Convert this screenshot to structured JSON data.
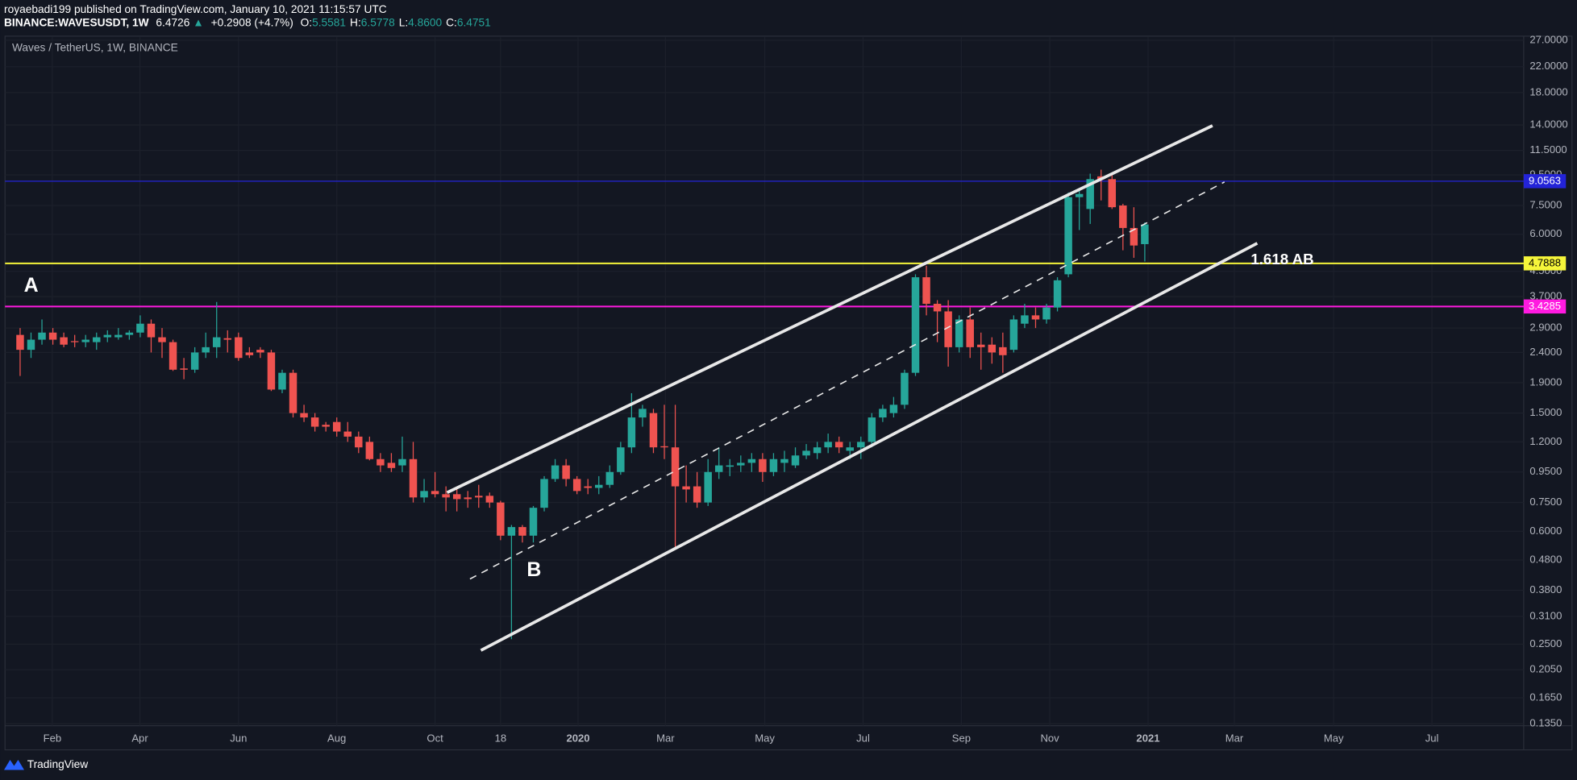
{
  "header": {
    "published": "royaebadi199 published on TradingView.com, January 10, 2021 11:15:57 UTC",
    "symbol": "BINANCE:WAVESUSDT, 1W",
    "last": "6.4726",
    "arrow": "▲",
    "change": "+0.2908 (+4.7%)",
    "ohlc": [
      {
        "label": "O:",
        "value": "5.5581"
      },
      {
        "label": "H:",
        "value": "6.5778"
      },
      {
        "label": "L:",
        "value": "4.8600"
      },
      {
        "label": "C:",
        "value": "6.4751"
      }
    ]
  },
  "footer": {
    "brand": "TradingView"
  },
  "chart_data": {
    "type": "candlestick",
    "title": "Waves / TetherUS, 1W, BINANCE",
    "log_scale": true,
    "grid": true,
    "up_color": "#26a69a",
    "down_color": "#ef5350",
    "xlim": [
      -1.38,
      137.7
    ],
    "ylim": [
      0.1329,
      27.65
    ],
    "xticks": [
      {
        "value": 2.95,
        "label": "Feb"
      },
      {
        "value": 10.97,
        "label": "Apr"
      },
      {
        "value": 20.0,
        "label": "Jun"
      },
      {
        "value": 29.0,
        "label": "Aug"
      },
      {
        "value": 38.0,
        "label": "Oct"
      },
      {
        "value": 44.0,
        "label": "18"
      },
      {
        "value": 51.1,
        "label": "2020"
      },
      {
        "value": 59.1,
        "label": "Mar"
      },
      {
        "value": 68.2,
        "label": "May"
      },
      {
        "value": 77.2,
        "label": "Jul"
      },
      {
        "value": 86.2,
        "label": "Sep"
      },
      {
        "value": 94.3,
        "label": "Nov"
      },
      {
        "value": 103.3,
        "label": "2021"
      },
      {
        "value": 111.2,
        "label": "Mar"
      },
      {
        "value": 120.3,
        "label": "May"
      },
      {
        "value": 129.3,
        "label": "Jul"
      }
    ],
    "yticks": [
      {
        "value": 27,
        "label": "27.0000"
      },
      {
        "value": 22,
        "label": "22.0000"
      },
      {
        "value": 18,
        "label": "18.0000"
      },
      {
        "value": 14,
        "label": "14.0000"
      },
      {
        "value": 11.5,
        "label": "11.5000"
      },
      {
        "value": 9.5,
        "label": "9.5000"
      },
      {
        "value": 7.5,
        "label": "7.5000"
      },
      {
        "value": 6,
        "label": "6.0000"
      },
      {
        "value": 4.5,
        "label": "4.5000"
      },
      {
        "value": 3.7,
        "label": "3.7000"
      },
      {
        "value": 2.9,
        "label": "2.9000"
      },
      {
        "value": 2.4,
        "label": "2.4000"
      },
      {
        "value": 1.9,
        "label": "1.9000"
      },
      {
        "value": 1.5,
        "label": "1.5000"
      },
      {
        "value": 1.2,
        "label": "1.2000"
      },
      {
        "value": 0.95,
        "label": "0.9500"
      },
      {
        "value": 0.75,
        "label": "0.7500"
      },
      {
        "value": 0.6,
        "label": "0.6000"
      },
      {
        "value": 0.48,
        "label": "0.4800"
      },
      {
        "value": 0.38,
        "label": "0.3800"
      },
      {
        "value": 0.31,
        "label": "0.3100"
      },
      {
        "value": 0.25,
        "label": "0.2500"
      },
      {
        "value": 0.205,
        "label": "0.2050"
      },
      {
        "value": 0.165,
        "label": "0.1650"
      },
      {
        "value": 0.135,
        "label": "0.1350"
      }
    ],
    "levels": [
      {
        "value": 9.0563,
        "color": "#2323d8",
        "text_color": "#ffffff"
      },
      {
        "value": 4.7888,
        "color": "#f5f53a",
        "text_color": "#000000"
      },
      {
        "value": 3.4285,
        "color": "#ff1ae0",
        "text_color": "#ffffff"
      }
    ],
    "trend_lines": [
      {
        "points": [
          [
            39.1,
            0.81
          ],
          [
            109.2,
            13.93
          ]
        ],
        "color": "#e8e8e8",
        "dashed": false
      },
      {
        "points": [
          [
            42.2,
            0.2384
          ],
          [
            113.3,
            5.596
          ]
        ],
        "color": "#e8e8e8",
        "dashed": false
      },
      {
        "points": [
          [
            41.2,
            0.4146
          ],
          [
            110.3,
            9.0
          ]
        ],
        "color": "#e8e8e8",
        "dashed": true
      }
    ],
    "annotations": [
      "A",
      "B",
      "1.618 AB"
    ],
    "candles": [
      {
        "open": 2.75,
        "high": 2.9,
        "low": 2.0,
        "close": 2.45
      },
      {
        "open": 2.45,
        "high": 2.8,
        "low": 2.3,
        "close": 2.65
      },
      {
        "open": 2.65,
        "high": 3.1,
        "low": 2.55,
        "close": 2.8
      },
      {
        "open": 2.8,
        "high": 2.9,
        "low": 2.55,
        "close": 2.65
      },
      {
        "open": 2.7,
        "high": 2.8,
        "low": 2.5,
        "close": 2.55
      },
      {
        "open": 2.62,
        "high": 2.75,
        "low": 2.5,
        "close": 2.6
      },
      {
        "open": 2.6,
        "high": 2.75,
        "low": 2.5,
        "close": 2.65
      },
      {
        "open": 2.6,
        "high": 2.8,
        "low": 2.45,
        "close": 2.7
      },
      {
        "open": 2.7,
        "high": 2.85,
        "low": 2.6,
        "close": 2.75
      },
      {
        "open": 2.7,
        "high": 2.9,
        "low": 2.65,
        "close": 2.75
      },
      {
        "open": 2.75,
        "high": 2.85,
        "low": 2.65,
        "close": 2.8
      },
      {
        "open": 2.8,
        "high": 3.2,
        "low": 2.7,
        "close": 3.0
      },
      {
        "open": 3.0,
        "high": 3.1,
        "low": 2.4,
        "close": 2.7
      },
      {
        "open": 2.7,
        "high": 2.9,
        "low": 2.3,
        "close": 2.6
      },
      {
        "open": 2.6,
        "high": 2.65,
        "low": 2.08,
        "close": 2.1
      },
      {
        "open": 2.12,
        "high": 2.3,
        "low": 1.95,
        "close": 2.1
      },
      {
        "open": 2.1,
        "high": 2.5,
        "low": 2.05,
        "close": 2.4
      },
      {
        "open": 2.4,
        "high": 2.8,
        "low": 2.3,
        "close": 2.5
      },
      {
        "open": 2.5,
        "high": 3.55,
        "low": 2.3,
        "close": 2.7
      },
      {
        "open": 2.68,
        "high": 2.85,
        "low": 2.4,
        "close": 2.65
      },
      {
        "open": 2.7,
        "high": 2.8,
        "low": 2.25,
        "close": 2.3
      },
      {
        "open": 2.4,
        "high": 2.5,
        "low": 2.3,
        "close": 2.35
      },
      {
        "open": 2.45,
        "high": 2.5,
        "low": 2.3,
        "close": 2.4
      },
      {
        "open": 2.4,
        "high": 2.45,
        "low": 1.78,
        "close": 1.8
      },
      {
        "open": 1.8,
        "high": 2.1,
        "low": 1.75,
        "close": 2.05
      },
      {
        "open": 2.05,
        "high": 2.1,
        "low": 1.45,
        "close": 1.5
      },
      {
        "open": 1.5,
        "high": 1.6,
        "low": 1.4,
        "close": 1.45
      },
      {
        "open": 1.45,
        "high": 1.5,
        "low": 1.3,
        "close": 1.35
      },
      {
        "open": 1.37,
        "high": 1.4,
        "low": 1.3,
        "close": 1.35
      },
      {
        "open": 1.4,
        "high": 1.45,
        "low": 1.25,
        "close": 1.3
      },
      {
        "open": 1.3,
        "high": 1.4,
        "low": 1.2,
        "close": 1.25
      },
      {
        "open": 1.25,
        "high": 1.3,
        "low": 1.1,
        "close": 1.15
      },
      {
        "open": 1.2,
        "high": 1.25,
        "low": 1.04,
        "close": 1.05
      },
      {
        "open": 1.05,
        "high": 1.1,
        "low": 0.95,
        "close": 1.0
      },
      {
        "open": 1.02,
        "high": 1.1,
        "low": 0.95,
        "close": 0.98
      },
      {
        "open": 1.0,
        "high": 1.25,
        "low": 0.95,
        "close": 1.05
      },
      {
        "open": 1.05,
        "high": 1.2,
        "low": 0.75,
        "close": 0.78
      },
      {
        "open": 0.78,
        "high": 0.9,
        "low": 0.75,
        "close": 0.82
      },
      {
        "open": 0.82,
        "high": 0.95,
        "low": 0.78,
        "close": 0.8
      },
      {
        "open": 0.8,
        "high": 0.85,
        "low": 0.7,
        "close": 0.78
      },
      {
        "open": 0.8,
        "high": 0.83,
        "low": 0.7,
        "close": 0.77
      },
      {
        "open": 0.78,
        "high": 0.82,
        "low": 0.72,
        "close": 0.77
      },
      {
        "open": 0.79,
        "high": 0.86,
        "low": 0.72,
        "close": 0.78
      },
      {
        "open": 0.79,
        "high": 0.81,
        "low": 0.72,
        "close": 0.75
      },
      {
        "open": 0.75,
        "high": 0.76,
        "low": 0.56,
        "close": 0.58
      },
      {
        "open": 0.58,
        "high": 0.63,
        "low": 0.26,
        "close": 0.62
      },
      {
        "open": 0.62,
        "high": 0.63,
        "low": 0.55,
        "close": 0.58
      },
      {
        "open": 0.58,
        "high": 0.73,
        "low": 0.55,
        "close": 0.72
      },
      {
        "open": 0.72,
        "high": 0.92,
        "low": 0.7,
        "close": 0.9
      },
      {
        "open": 0.9,
        "high": 1.05,
        "low": 0.88,
        "close": 1.0
      },
      {
        "open": 1.0,
        "high": 1.05,
        "low": 0.85,
        "close": 0.9
      },
      {
        "open": 0.9,
        "high": 0.92,
        "low": 0.8,
        "close": 0.82
      },
      {
        "open": 0.85,
        "high": 0.9,
        "low": 0.8,
        "close": 0.84
      },
      {
        "open": 0.84,
        "high": 0.92,
        "low": 0.8,
        "close": 0.86
      },
      {
        "open": 0.86,
        "high": 1.0,
        "low": 0.84,
        "close": 0.95
      },
      {
        "open": 0.95,
        "high": 1.2,
        "low": 0.93,
        "close": 1.15
      },
      {
        "open": 1.15,
        "high": 1.75,
        "low": 1.1,
        "close": 1.45
      },
      {
        "open": 1.45,
        "high": 1.6,
        "low": 1.35,
        "close": 1.55
      },
      {
        "open": 1.5,
        "high": 1.55,
        "low": 1.1,
        "close": 1.15
      },
      {
        "open": 1.16,
        "high": 1.6,
        "low": 1.05,
        "close": 1.15
      },
      {
        "open": 1.15,
        "high": 1.6,
        "low": 0.53,
        "close": 0.85
      },
      {
        "open": 0.85,
        "high": 1.0,
        "low": 0.75,
        "close": 0.83
      },
      {
        "open": 0.85,
        "high": 0.95,
        "low": 0.72,
        "close": 0.75
      },
      {
        "open": 0.75,
        "high": 1.05,
        "low": 0.73,
        "close": 0.95
      },
      {
        "open": 0.95,
        "high": 1.15,
        "low": 0.9,
        "close": 1.0
      },
      {
        "open": 0.99,
        "high": 1.05,
        "low": 0.92,
        "close": 1.0
      },
      {
        "open": 1.0,
        "high": 1.08,
        "low": 0.95,
        "close": 1.02
      },
      {
        "open": 1.02,
        "high": 1.1,
        "low": 0.95,
        "close": 1.05
      },
      {
        "open": 1.05,
        "high": 1.1,
        "low": 0.88,
        "close": 0.95
      },
      {
        "open": 0.95,
        "high": 1.1,
        "low": 0.92,
        "close": 1.05
      },
      {
        "open": 1.02,
        "high": 1.12,
        "low": 0.95,
        "close": 1.05
      },
      {
        "open": 1.0,
        "high": 1.15,
        "low": 0.98,
        "close": 1.08
      },
      {
        "open": 1.08,
        "high": 1.18,
        "low": 1.05,
        "close": 1.12
      },
      {
        "open": 1.1,
        "high": 1.2,
        "low": 1.05,
        "close": 1.15
      },
      {
        "open": 1.15,
        "high": 1.28,
        "low": 1.1,
        "close": 1.2
      },
      {
        "open": 1.2,
        "high": 1.25,
        "low": 1.1,
        "close": 1.15
      },
      {
        "open": 1.12,
        "high": 1.2,
        "low": 1.05,
        "close": 1.15
      },
      {
        "open": 1.15,
        "high": 1.25,
        "low": 1.05,
        "close": 1.2
      },
      {
        "open": 1.2,
        "high": 1.5,
        "low": 1.15,
        "close": 1.45
      },
      {
        "open": 1.45,
        "high": 1.6,
        "low": 1.4,
        "close": 1.55
      },
      {
        "open": 1.5,
        "high": 1.7,
        "low": 1.45,
        "close": 1.6
      },
      {
        "open": 1.6,
        "high": 2.1,
        "low": 1.55,
        "close": 2.05
      },
      {
        "open": 2.05,
        "high": 4.4,
        "low": 2.0,
        "close": 4.3
      },
      {
        "open": 4.3,
        "high": 4.7,
        "low": 3.2,
        "close": 3.5
      },
      {
        "open": 3.5,
        "high": 3.6,
        "low": 2.6,
        "close": 3.3
      },
      {
        "open": 3.3,
        "high": 3.6,
        "low": 2.15,
        "close": 2.5
      },
      {
        "open": 2.5,
        "high": 3.2,
        "low": 2.4,
        "close": 3.1
      },
      {
        "open": 3.1,
        "high": 3.4,
        "low": 2.3,
        "close": 2.5
      },
      {
        "open": 2.55,
        "high": 2.8,
        "low": 2.1,
        "close": 2.5
      },
      {
        "open": 2.55,
        "high": 2.7,
        "low": 2.2,
        "close": 2.4
      },
      {
        "open": 2.5,
        "high": 2.8,
        "low": 2.05,
        "close": 2.35
      },
      {
        "open": 2.45,
        "high": 3.2,
        "low": 2.4,
        "close": 3.1
      },
      {
        "open": 3.0,
        "high": 3.5,
        "low": 2.9,
        "close": 3.2
      },
      {
        "open": 3.2,
        "high": 3.4,
        "low": 2.9,
        "close": 3.1
      },
      {
        "open": 3.1,
        "high": 3.5,
        "low": 3.0,
        "close": 3.4
      },
      {
        "open": 3.4,
        "high": 4.3,
        "low": 3.3,
        "close": 4.2
      },
      {
        "open": 4.4,
        "high": 8.3,
        "low": 4.3,
        "close": 8.0
      },
      {
        "open": 8.0,
        "high": 8.5,
        "low": 6.2,
        "close": 8.2
      },
      {
        "open": 7.3,
        "high": 9.6,
        "low": 6.5,
        "close": 9.2
      },
      {
        "open": 9.4,
        "high": 9.9,
        "low": 7.8,
        "close": 9.2
      },
      {
        "open": 9.2,
        "high": 9.6,
        "low": 7.3,
        "close": 7.4
      },
      {
        "open": 7.5,
        "high": 7.6,
        "low": 5.3,
        "close": 6.3
      },
      {
        "open": 6.3,
        "high": 7.4,
        "low": 5.0,
        "close": 5.5
      },
      {
        "open": 5.5581,
        "high": 6.5778,
        "low": 4.86,
        "close": 6.4751
      }
    ]
  }
}
